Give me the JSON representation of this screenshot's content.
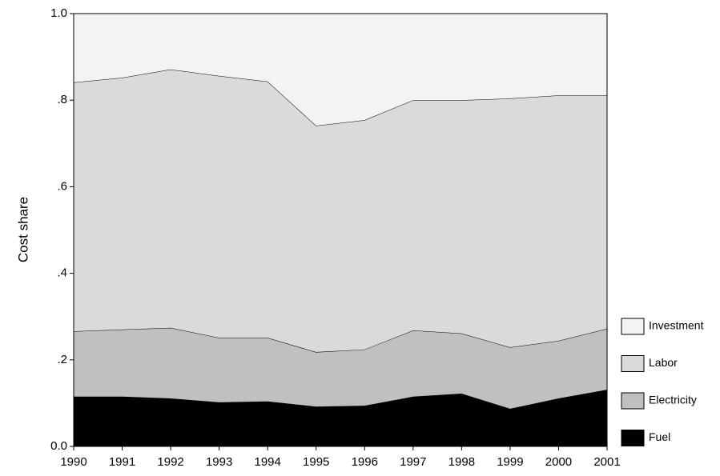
{
  "chart_data": {
    "type": "stacked_area",
    "y_label": "Cost share",
    "categories": [
      "1990",
      "1991",
      "1992",
      "1993",
      "1994",
      "1995",
      "1996",
      "1997",
      "1998",
      "1999",
      "2000",
      "2001"
    ],
    "series": [
      {
        "name": "Fuel",
        "color": "#000000",
        "values": [
          0.115,
          0.115,
          0.111,
          0.102,
          0.104,
          0.092,
          0.094,
          0.115,
          0.122,
          0.087,
          0.111,
          0.131
        ]
      },
      {
        "name": "Electricity",
        "color": "#c0c0c0",
        "values": [
          0.151,
          0.155,
          0.163,
          0.149,
          0.147,
          0.126,
          0.13,
          0.153,
          0.139,
          0.142,
          0.133,
          0.141
        ]
      },
      {
        "name": "Labor",
        "color": "#dadada",
        "values": [
          0.575,
          0.582,
          0.597,
          0.605,
          0.592,
          0.523,
          0.53,
          0.532,
          0.539,
          0.575,
          0.567,
          0.539
        ]
      },
      {
        "name": "Investment",
        "color": "#f3f3f3",
        "values": [
          0.159,
          0.148,
          0.129,
          0.144,
          0.157,
          0.259,
          0.246,
          0.2,
          0.2,
          0.196,
          0.189,
          0.189
        ]
      }
    ],
    "ylim": [
      0,
      1
    ],
    "yticks": [
      {
        "value": 0,
        "label": "0.0"
      },
      {
        "value": 0.2,
        "label": ".2"
      },
      {
        "value": 0.4,
        "label": ".4"
      },
      {
        "value": 0.6,
        "label": ".6"
      },
      {
        "value": 0.8,
        "label": ".8"
      },
      {
        "value": 1,
        "label": "1.0"
      }
    ]
  }
}
